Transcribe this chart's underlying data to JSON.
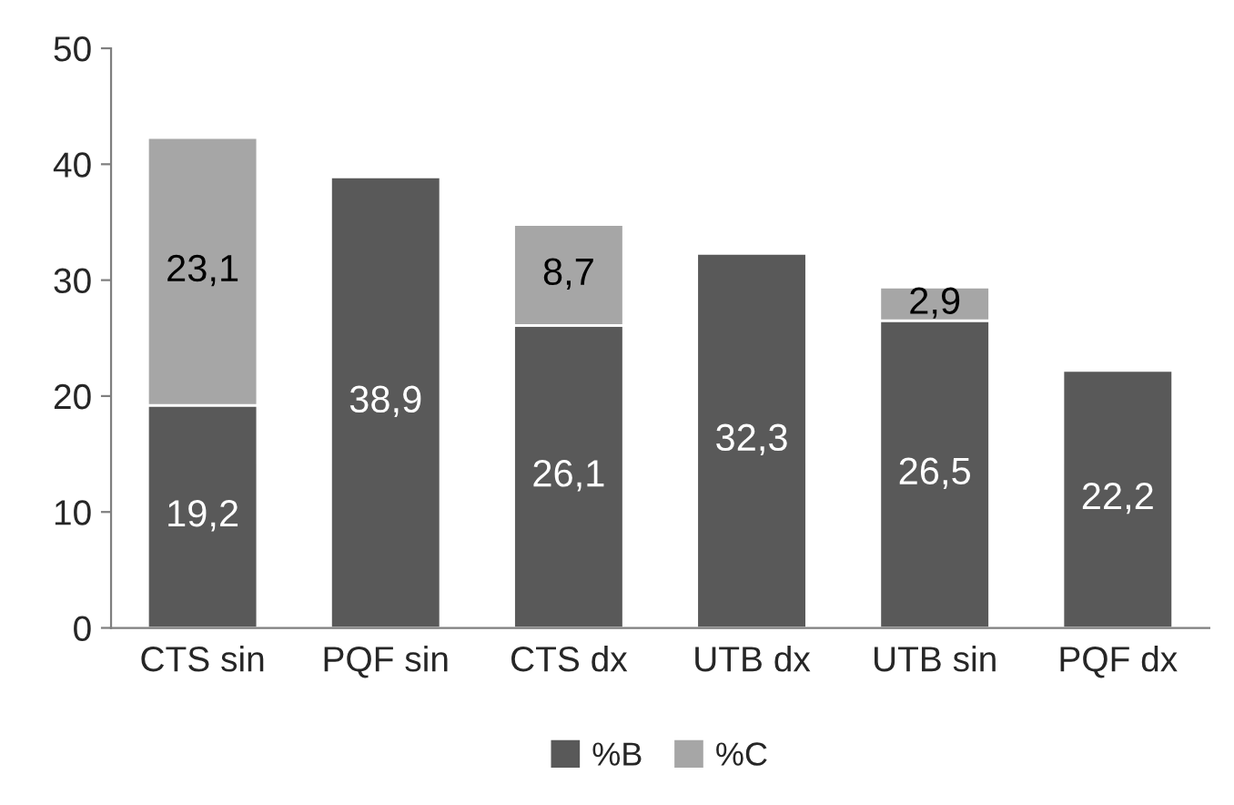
{
  "chart_data": {
    "type": "bar",
    "stacked": true,
    "categories": [
      "CTS sin",
      "PQF sin",
      "CTS dx",
      "UTB dx",
      "UTB sin",
      "PQF dx"
    ],
    "series": [
      {
        "name": "%B",
        "color": "#595959",
        "values": [
          19.2,
          38.9,
          26.1,
          32.3,
          26.5,
          22.2
        ],
        "value_labels": [
          "19,2",
          "38,9",
          "26,1",
          "32,3",
          "26,5",
          "22,2"
        ]
      },
      {
        "name": "%C",
        "color": "#a6a6a6",
        "values": [
          23.1,
          null,
          8.7,
          null,
          2.9,
          null
        ],
        "value_labels": [
          "23,1",
          null,
          "8,7",
          null,
          "2,9",
          null
        ]
      }
    ],
    "ylim": [
      0,
      50
    ],
    "yticks": [
      0,
      10,
      20,
      30,
      40,
      50
    ],
    "grid": false,
    "legend": "bottom"
  }
}
